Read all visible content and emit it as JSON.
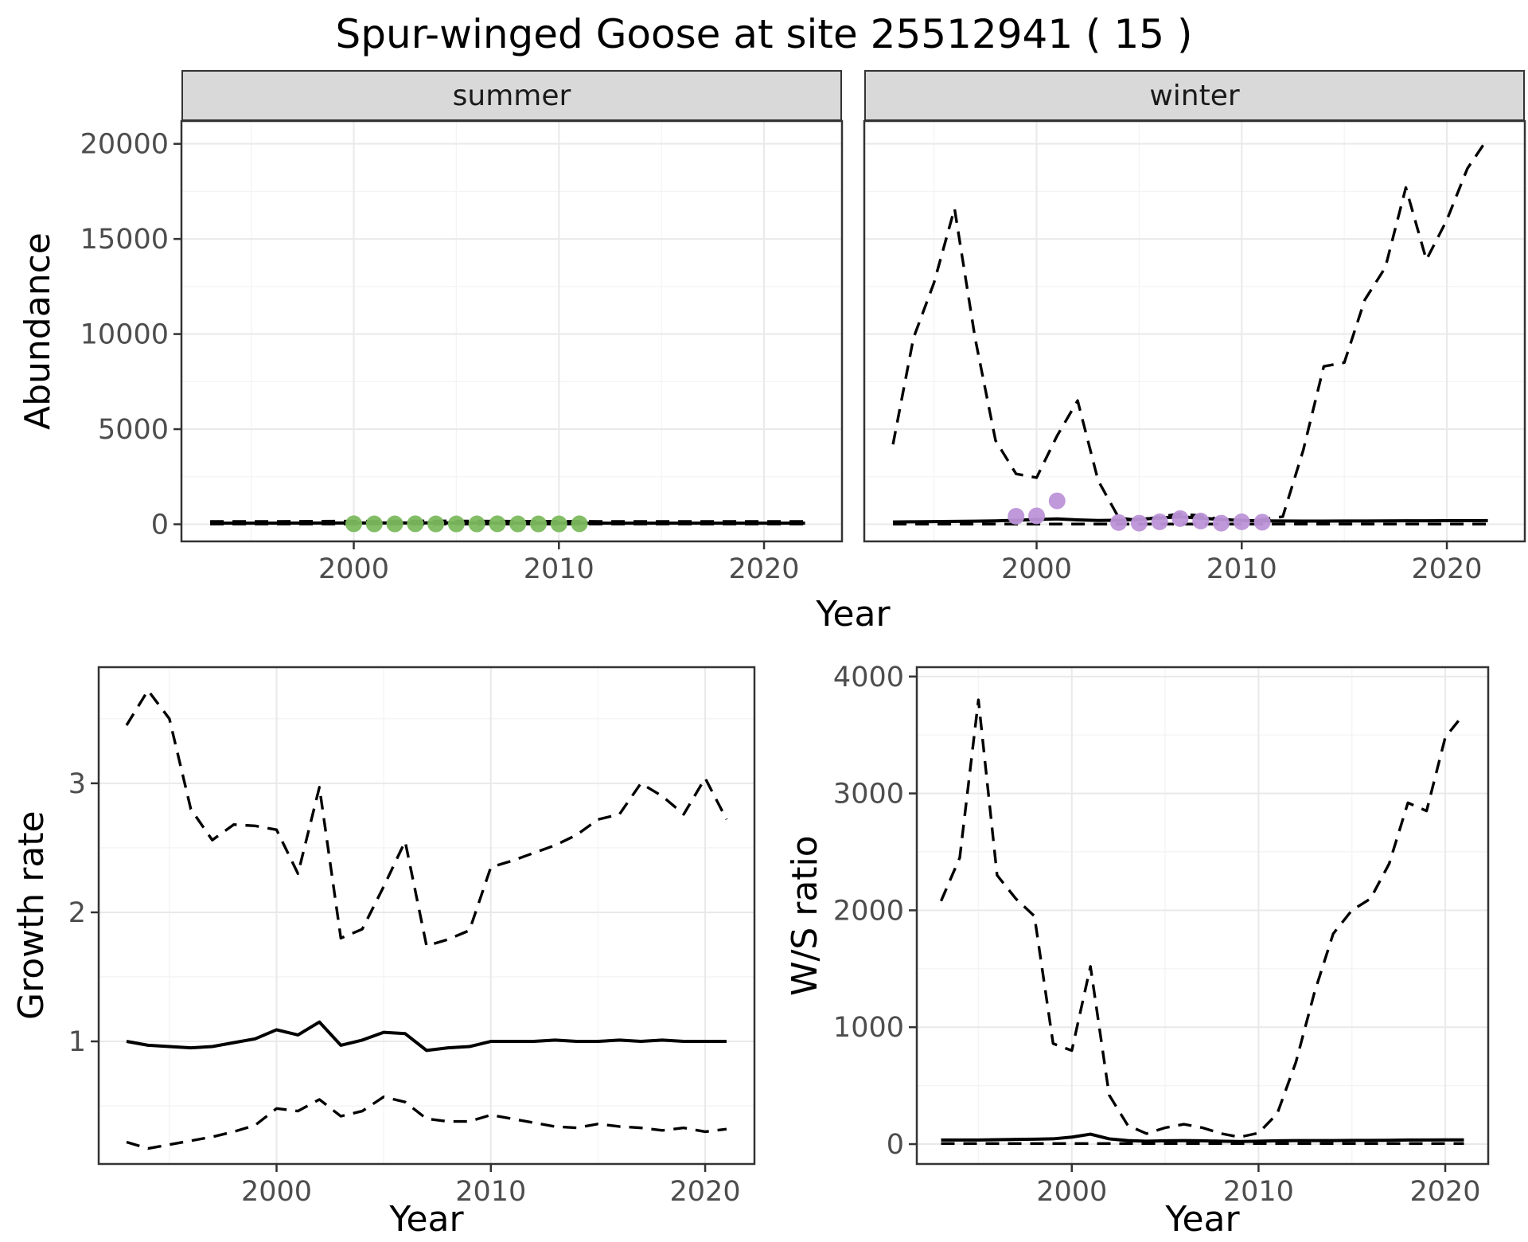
{
  "title": "Spur-winged Goose at site 25512941 ( 15 )",
  "colors": {
    "summer_points": "#7cbb5f",
    "winter_points": "#bd93d8",
    "line": "#000000",
    "strip_background": "#d9d9d9",
    "panel_border": "#333333",
    "tick_label": "#4d4d4d",
    "grid_major": "#e9e9e9",
    "grid_minor": "#f4f4f4"
  },
  "chart_data": [
    {
      "id": "abundance-summer",
      "type": "line",
      "facet_label": "summer",
      "xlabel": "Year",
      "ylabel": "Abundance",
      "xlim": [
        1991.6,
        2023.8
      ],
      "ylim": [
        -900,
        21200
      ],
      "xticks": [
        2000,
        2010,
        2020
      ],
      "yticks": [
        0,
        5000,
        10000,
        15000,
        20000
      ],
      "series": [
        {
          "name": "ci_lower",
          "kind": "line",
          "style": "dashed",
          "color": "#000000",
          "width": 3.4,
          "x": [
            1993,
            1996,
            2000,
            2004,
            2008,
            2012,
            2016,
            2020,
            2022
          ],
          "y": [
            15,
            15,
            15,
            15,
            15,
            15,
            15,
            15,
            15
          ]
        },
        {
          "name": "ci_upper",
          "kind": "line",
          "style": "dashed",
          "color": "#000000",
          "width": 3.4,
          "x": [
            1993,
            1996,
            2000,
            2004,
            2008,
            2012,
            2016,
            2020,
            2022
          ],
          "y": [
            150,
            150,
            165,
            175,
            160,
            150,
            150,
            150,
            150
          ]
        },
        {
          "name": "fit",
          "kind": "line",
          "style": "solid",
          "color": "#000000",
          "width": 4,
          "x": [
            1993,
            1996,
            2000,
            2004,
            2008,
            2012,
            2016,
            2020,
            2022
          ],
          "y": [
            60,
            60,
            68,
            72,
            65,
            60,
            60,
            60,
            60
          ]
        },
        {
          "name": "counts",
          "kind": "points",
          "color": "#7cbb5f",
          "r": 10.5,
          "x": [
            2000,
            2001,
            2002,
            2003,
            2004,
            2005,
            2006,
            2007,
            2008,
            2009,
            2010,
            2011
          ],
          "y": [
            25,
            20,
            20,
            25,
            20,
            20,
            20,
            25,
            20,
            20,
            20,
            25
          ]
        }
      ]
    },
    {
      "id": "abundance-winter",
      "type": "line",
      "facet_label": "winter",
      "xlabel": "Year",
      "ylabel": "Abundance",
      "xlim": [
        1991.6,
        2023.8
      ],
      "ylim": [
        -900,
        21200
      ],
      "xticks": [
        2000,
        2010,
        2020
      ],
      "yticks": [
        0,
        5000,
        10000,
        15000,
        20000
      ],
      "series": [
        {
          "name": "ci_lower",
          "kind": "line",
          "style": "dashed",
          "color": "#000000",
          "width": 3.4,
          "x": [
            1993,
            2022
          ],
          "y": [
            10,
            10
          ]
        },
        {
          "name": "ci_upper",
          "kind": "line",
          "style": "dashed",
          "color": "#000000",
          "width": 3.4,
          "x": [
            1993,
            1994,
            1995,
            1996,
            1997,
            1998,
            1999,
            2000,
            2001,
            2002,
            2003,
            2004,
            2005,
            2006,
            2007,
            2008,
            2009,
            2010,
            2011,
            2012,
            2013,
            2014,
            2015,
            2016,
            2017,
            2018,
            2019,
            2020,
            2021,
            2022
          ],
          "y": [
            4200,
            9800,
            12700,
            16600,
            9800,
            4400,
            2650,
            2450,
            4650,
            6500,
            2300,
            350,
            200,
            400,
            550,
            450,
            250,
            200,
            250,
            400,
            3900,
            8300,
            8500,
            11800,
            13500,
            17700,
            13900,
            16000,
            18700,
            20300
          ]
        },
        {
          "name": "fit",
          "kind": "line",
          "style": "solid",
          "color": "#000000",
          "width": 4,
          "x": [
            1993,
            1994,
            1995,
            1996,
            1997,
            1998,
            1999,
            2000,
            2001,
            2002,
            2003,
            2004,
            2005,
            2006,
            2007,
            2008,
            2009,
            2010,
            2011,
            2012,
            2013,
            2014,
            2015,
            2016,
            2017,
            2018,
            2019,
            2020,
            2021,
            2022
          ],
          "y": [
            120,
            130,
            140,
            150,
            160,
            180,
            210,
            250,
            280,
            230,
            200,
            210,
            260,
            330,
            390,
            320,
            250,
            200,
            180,
            170,
            165,
            165,
            170,
            175,
            180,
            185,
            185,
            190,
            190,
            195
          ]
        },
        {
          "name": "counts",
          "kind": "points",
          "color": "#bd93d8",
          "r": 10.5,
          "x": [
            1999,
            2000,
            2001,
            2004,
            2005,
            2006,
            2007,
            2008,
            2009,
            2010,
            2011
          ],
          "y": [
            420,
            440,
            1230,
            90,
            60,
            130,
            300,
            170,
            60,
            130,
            110
          ]
        }
      ]
    },
    {
      "id": "growth-rate",
      "type": "line",
      "facet_label": "",
      "xlabel": "Year",
      "ylabel": "Growth rate",
      "xlim": [
        1991.7,
        2022.3
      ],
      "ylim": [
        0.05,
        3.9
      ],
      "xticks": [
        2000,
        2010,
        2020
      ],
      "yticks": [
        1,
        2,
        3
      ],
      "series": [
        {
          "name": "ci_upper",
          "kind": "line",
          "style": "dashed",
          "color": "#000000",
          "width": 3.4,
          "x": [
            1993,
            1994,
            1995,
            1996,
            1997,
            1998,
            1999,
            2000,
            2001,
            2002,
            2003,
            2004,
            2005,
            2006,
            2007,
            2008,
            2009,
            2010,
            2011,
            2012,
            2013,
            2014,
            2015,
            2016,
            2017,
            2018,
            2019,
            2020,
            2021
          ],
          "y": [
            3.45,
            3.72,
            3.5,
            2.8,
            2.56,
            2.68,
            2.67,
            2.64,
            2.3,
            2.97,
            1.8,
            1.87,
            2.2,
            2.55,
            1.74,
            1.79,
            1.86,
            2.35,
            2.4,
            2.46,
            2.52,
            2.6,
            2.72,
            2.76,
            3.0,
            2.9,
            2.76,
            3.04,
            2.72
          ]
        },
        {
          "name": "ci_lower",
          "kind": "line",
          "style": "dashed",
          "color": "#000000",
          "width": 3.4,
          "x": [
            1993,
            1994,
            1995,
            1996,
            1997,
            1998,
            1999,
            2000,
            2001,
            2002,
            2003,
            2004,
            2005,
            2006,
            2007,
            2008,
            2009,
            2010,
            2011,
            2012,
            2013,
            2014,
            2015,
            2016,
            2017,
            2018,
            2019,
            2020,
            2021
          ],
          "y": [
            0.22,
            0.17,
            0.2,
            0.23,
            0.26,
            0.3,
            0.35,
            0.48,
            0.46,
            0.55,
            0.42,
            0.46,
            0.57,
            0.53,
            0.4,
            0.38,
            0.38,
            0.43,
            0.4,
            0.37,
            0.34,
            0.33,
            0.36,
            0.34,
            0.33,
            0.31,
            0.33,
            0.3,
            0.32
          ]
        },
        {
          "name": "fit",
          "kind": "line",
          "style": "solid",
          "color": "#000000",
          "width": 4,
          "x": [
            1993,
            1994,
            1995,
            1996,
            1997,
            1998,
            1999,
            2000,
            2001,
            2002,
            2003,
            2004,
            2005,
            2006,
            2007,
            2008,
            2009,
            2010,
            2011,
            2012,
            2013,
            2014,
            2015,
            2016,
            2017,
            2018,
            2019,
            2020,
            2021
          ],
          "y": [
            1.0,
            0.97,
            0.96,
            0.95,
            0.96,
            0.99,
            1.02,
            1.09,
            1.05,
            1.15,
            0.97,
            1.01,
            1.07,
            1.06,
            0.93,
            0.95,
            0.96,
            1.0,
            1.0,
            1.0,
            1.01,
            1.0,
            1.0,
            1.01,
            1.0,
            1.01,
            1.0,
            1.0,
            1.0
          ]
        }
      ]
    },
    {
      "id": "ws-ratio",
      "type": "line",
      "facet_label": "",
      "xlabel": "Year",
      "ylabel": "W/S ratio",
      "xlim": [
        1991.7,
        2022.3
      ],
      "ylim": [
        -170,
        4080
      ],
      "xticks": [
        2000,
        2010,
        2020
      ],
      "yticks": [
        0,
        1000,
        2000,
        3000,
        4000
      ],
      "series": [
        {
          "name": "ci_lower",
          "kind": "line",
          "style": "dashed",
          "color": "#000000",
          "width": 3.4,
          "x": [
            1993,
            2021
          ],
          "y": [
            5,
            5
          ]
        },
        {
          "name": "ci_upper",
          "kind": "line",
          "style": "dashed",
          "color": "#000000",
          "width": 3.4,
          "x": [
            1993,
            1994,
            1995,
            1996,
            1997,
            1998,
            1999,
            2000,
            2001,
            2002,
            2003,
            2004,
            2005,
            2006,
            2007,
            2008,
            2009,
            2010,
            2011,
            2012,
            2013,
            2014,
            2015,
            2016,
            2017,
            2018,
            2019,
            2020,
            2021
          ],
          "y": [
            2080,
            2450,
            3800,
            2300,
            2100,
            1950,
            860,
            800,
            1520,
            420,
            160,
            90,
            140,
            170,
            140,
            90,
            60,
            95,
            260,
            700,
            1300,
            1800,
            2000,
            2100,
            2400,
            2920,
            2850,
            3480,
            3680
          ]
        },
        {
          "name": "fit",
          "kind": "line",
          "style": "solid",
          "color": "#000000",
          "width": 4,
          "x": [
            1993,
            1994,
            1995,
            1996,
            1997,
            1998,
            1999,
            2000,
            2001,
            2002,
            2003,
            2004,
            2005,
            2006,
            2007,
            2008,
            2009,
            2010,
            2011,
            2012,
            2013,
            2014,
            2015,
            2016,
            2017,
            2018,
            2019,
            2020,
            2021
          ],
          "y": [
            35,
            35,
            35,
            38,
            40,
            42,
            45,
            60,
            85,
            45,
            30,
            25,
            28,
            30,
            28,
            25,
            22,
            25,
            28,
            30,
            30,
            30,
            32,
            32,
            33,
            35,
            35,
            36,
            36
          ]
        }
      ]
    }
  ]
}
